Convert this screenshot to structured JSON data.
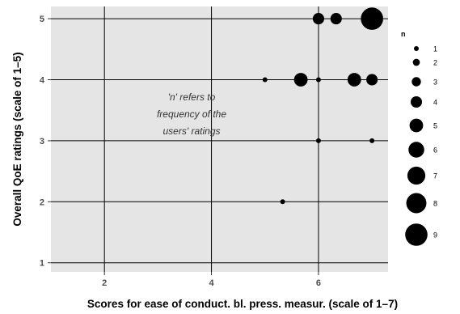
{
  "chart_data": {
    "type": "scatter",
    "xlabel": "Scores for ease of conduct. bl. press. measur. (scale of 1–7)",
    "ylabel": "Overall QoE ratings (scale of 1–5)",
    "xlim": [
      1.0,
      7.3
    ],
    "ylim": [
      0.85,
      5.2
    ],
    "x_ticks": [
      2,
      4,
      6
    ],
    "y_ticks": [
      1,
      2,
      3,
      4,
      5
    ],
    "grid": true,
    "annotation": [
      "'n' refers to",
      "frequency of the",
      "users' ratings"
    ],
    "legend": {
      "title": "n",
      "placement": "right",
      "entries": [
        1,
        2,
        3,
        4,
        5,
        6,
        7,
        8,
        9
      ]
    },
    "points": [
      {
        "x": 6.0,
        "y": 5,
        "n": 4
      },
      {
        "x": 6.33,
        "y": 5,
        "n": 4
      },
      {
        "x": 7.0,
        "y": 5,
        "n": 9
      },
      {
        "x": 5.0,
        "y": 4,
        "n": 1
      },
      {
        "x": 5.67,
        "y": 4,
        "n": 5
      },
      {
        "x": 6.0,
        "y": 4,
        "n": 1
      },
      {
        "x": 6.67,
        "y": 4,
        "n": 5
      },
      {
        "x": 7.0,
        "y": 4,
        "n": 4
      },
      {
        "x": 6.0,
        "y": 3,
        "n": 1
      },
      {
        "x": 7.0,
        "y": 3,
        "n": 1
      },
      {
        "x": 5.33,
        "y": 2,
        "n": 1
      }
    ],
    "colors": {
      "panel": "#e5e5e5",
      "grid": "#000000",
      "points": "#000000"
    }
  }
}
